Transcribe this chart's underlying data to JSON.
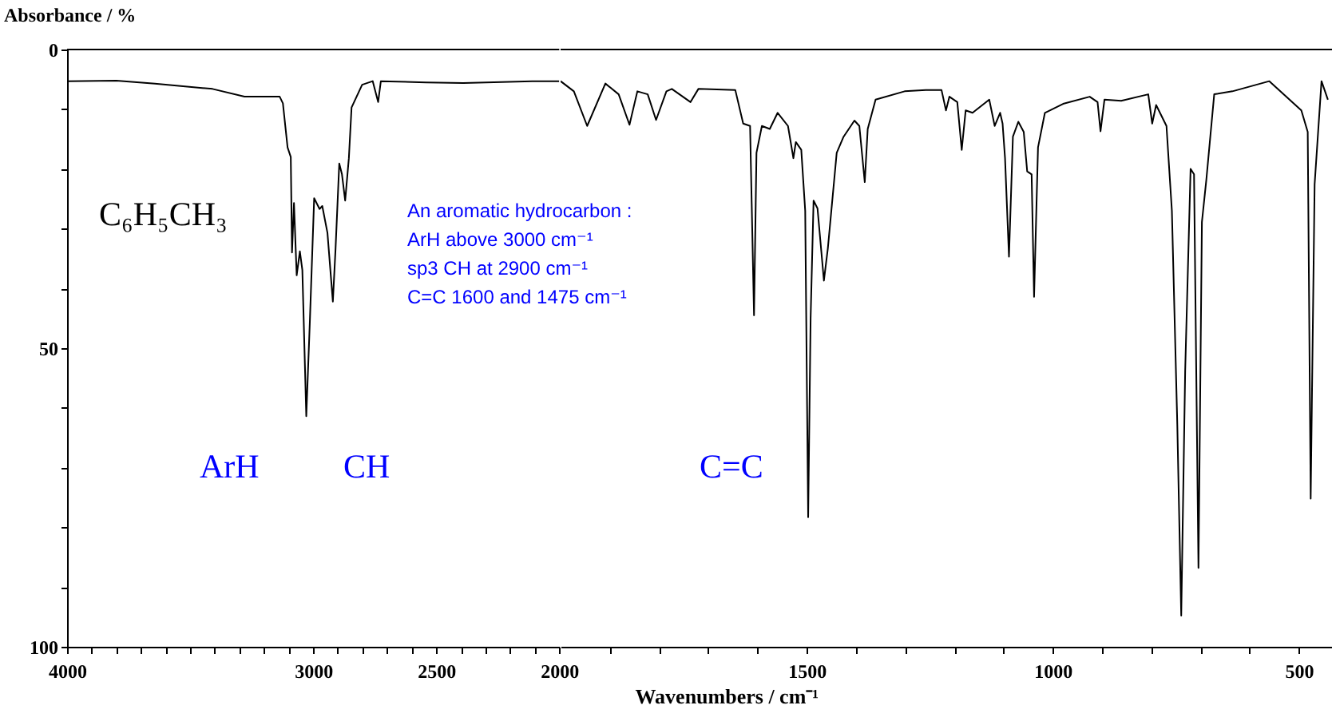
{
  "chart_data": [
    {
      "type": "line",
      "ylabel": "Absorbance / %",
      "annotations": [
        "C₆H₅CH₃",
        "An aromatic hydrocarbon :",
        "ArH above 3000 cm⁻¹",
        "sp3 CH at 2900 cm⁻¹",
        "C=C 1600 and 1475 cm⁻¹",
        "ArH",
        "CH",
        "C=C"
      ],
      "xlim": [
        4000,
        2000
      ],
      "ylim": [
        100,
        0
      ],
      "xticks": [
        4000,
        {
          "value": 3900,
          "label": null
        },
        {
          "value": 3800,
          "label": null
        },
        {
          "value": 3700,
          "label": null
        },
        {
          "value": 3600,
          "label": null
        },
        {
          "value": 3500,
          "label": null
        },
        {
          "value": 3400,
          "label": null
        },
        {
          "value": 3300,
          "label": null
        },
        {
          "value": 3200,
          "label": null
        },
        {
          "value": 3100,
          "label": null
        },
        3000,
        {
          "value": 2900,
          "label": null
        },
        {
          "value": 2800,
          "label": null
        },
        {
          "value": 2700,
          "label": null
        },
        {
          "value": 2600,
          "label": null
        },
        2500,
        {
          "value": 2400,
          "label": null
        },
        {
          "value": 2300,
          "label": null
        },
        {
          "value": 2200,
          "label": null
        },
        {
          "value": 2100,
          "label": null
        },
        2000
      ],
      "yticks": [
        0,
        {
          "value": 10,
          "label": null
        },
        {
          "value": 20,
          "label": null
        },
        {
          "value": 30,
          "label": null
        },
        {
          "value": 40,
          "label": null
        },
        50,
        {
          "value": 60,
          "label": null
        },
        {
          "value": 70,
          "label": null
        },
        {
          "value": 80,
          "label": null
        },
        {
          "value": 90,
          "label": null
        },
        100
      ],
      "marker": "none",
      "line_style": "solid",
      "series": [
        {
          "color": "#000000",
          "x": [
            4000,
            3800,
            3643,
            3409,
            3279,
            3136,
            3123,
            3104,
            3091,
            3086,
            3078,
            3067,
            3054,
            3044,
            3028,
            3013,
            2996,
            2974,
            2963,
            2942,
            2920,
            2909,
            2894,
            2883,
            2870,
            2855,
            2844,
            2801,
            2758,
            2736,
            2725,
            2541,
            2390,
            2110,
            2021,
            2000
          ],
          "values": [
            5.3,
            5.2,
            5.7,
            6.6,
            7.9,
            7.9,
            9,
            16.4,
            18,
            34,
            25.7,
            37.8,
            33.8,
            36.9,
            61.4,
            45,
            24.9,
            26.7,
            26.2,
            30.7,
            42.2,
            33.3,
            19.1,
            20.9,
            25.3,
            18.2,
            9.7,
            5.9,
            5.3,
            8.8,
            5.3,
            5.5,
            5.6,
            5.3,
            5.3,
            5.3
          ]
        }
      ]
    },
    {
      "type": "line",
      "xlabel": "Wavenumbers / cm⁻¹",
      "xlim": [
        2000,
        430
      ],
      "ylim": [
        100,
        0
      ],
      "tick_labels": "x",
      "xticks": [
        {
          "value": 1900,
          "label": null
        },
        {
          "value": 1800,
          "label": null
        },
        {
          "value": 1700,
          "label": null
        },
        {
          "value": 1600,
          "label": null
        },
        1500,
        {
          "value": 1400,
          "label": null
        },
        {
          "value": 1300,
          "label": null
        },
        {
          "value": 1200,
          "label": null
        },
        {
          "value": 1100,
          "label": null
        },
        1000,
        {
          "value": 900,
          "label": null
        },
        {
          "value": 800,
          "label": null
        },
        {
          "value": 700,
          "label": null
        },
        {
          "value": 600,
          "label": null
        },
        500
      ],
      "marker": "none",
      "line_style": "solid",
      "series": [
        {
          "color": "#000000",
          "x": [
            2000,
            1973,
            1946,
            1909,
            1882,
            1860,
            1844,
            1823,
            1806,
            1785,
            1774,
            1736,
            1720,
            1645,
            1629,
            1615,
            1607,
            1602,
            1591,
            1575,
            1559,
            1538,
            1527,
            1522,
            1511,
            1503,
            1497,
            1492,
            1486,
            1478,
            1465,
            1457,
            1439,
            1425,
            1403,
            1393,
            1382,
            1376,
            1360,
            1301,
            1258,
            1226,
            1217,
            1210,
            1194,
            1185,
            1177,
            1163,
            1129,
            1118,
            1107,
            1102,
            1097,
            1089,
            1081,
            1070,
            1059,
            1052,
            1043,
            1038,
            1030,
            1016,
            979,
            925,
            909,
            903,
            895,
            861,
            806,
            798,
            790,
            769,
            758,
            747,
            739,
            731,
            720,
            713,
            704,
            697,
            688,
            672,
            635,
            560,
            495,
            482,
            476,
            468,
            454,
            441
          ],
          "values": [
            5.3,
            7,
            12.8,
            5.7,
            7.5,
            12.6,
            7,
            7.5,
            11.8,
            7,
            6.6,
            8.8,
            6.6,
            6.8,
            12.4,
            12.8,
            44.5,
            17.3,
            12.8,
            13.3,
            10.6,
            12.8,
            18.2,
            15.5,
            16.8,
            27,
            78.3,
            45,
            25.3,
            26.6,
            38.7,
            33.3,
            17.3,
            14.6,
            11.9,
            12.8,
            22.2,
            13.3,
            8.4,
            7,
            6.8,
            6.8,
            10.2,
            7.9,
            8.8,
            16.8,
            10.2,
            10.6,
            8.4,
            12.8,
            10.6,
            12.4,
            18.2,
            34.7,
            14.6,
            12.1,
            13.8,
            20.4,
            20.9,
            41.4,
            16.4,
            10.6,
            9.1,
            7.9,
            8.8,
            13.7,
            8.4,
            8.6,
            7.5,
            12.4,
            9.3,
            12.8,
            27,
            62.8,
            94.8,
            53.8,
            20,
            20.9,
            86.8,
            28.9,
            21.8,
            7.5,
            7,
            5.3,
            10.2,
            13.8,
            75.2,
            22.6,
            5.3,
            8.4
          ]
        }
      ]
    }
  ]
}
